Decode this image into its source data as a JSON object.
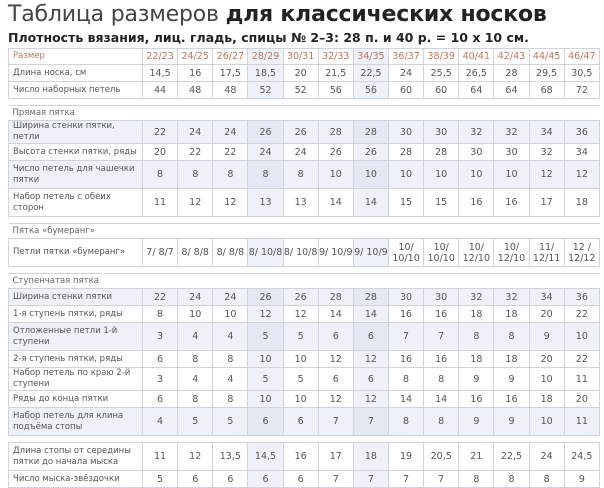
{
  "title": {
    "light": "Таблица размеров ",
    "bold": "для классических носков"
  },
  "subtitle": "Плотность вязания, лиц. гладь, спицы № 2–3: 28 п. и 40 р. = 10 х 10 см.",
  "header": {
    "label": "Размер",
    "sizes": [
      "22/23",
      "24/25",
      "26/27",
      "28/29",
      "30/31",
      "32/33",
      "34/35",
      "36/37",
      "38/39",
      "40/41",
      "42/43",
      "44/45",
      "46/47"
    ]
  },
  "colors": {
    "header_text": "#c07660",
    "grid": "#cfd4dc",
    "shade": "#eef1f7"
  },
  "rows": [
    {
      "type": "data",
      "label": "Длина носка, см",
      "values": [
        "14,5",
        "16",
        "17,5",
        "18,5",
        "20",
        "21,5",
        "22,5",
        "24",
        "25,5",
        "26,5",
        "28",
        "29,5",
        "30,5"
      ]
    },
    {
      "type": "data",
      "label": "Число наборных петель",
      "values": [
        "44",
        "48",
        "48",
        "52",
        "52",
        "56",
        "56",
        "60",
        "60",
        "64",
        "64",
        "68",
        "72"
      ]
    },
    {
      "type": "gap"
    },
    {
      "type": "section",
      "label": "Прямая пятка"
    },
    {
      "type": "data",
      "shade": true,
      "label": "Ширина стенки пятки, петли",
      "values": [
        "22",
        "24",
        "24",
        "26",
        "26",
        "28",
        "28",
        "30",
        "30",
        "32",
        "32",
        "34",
        "36"
      ]
    },
    {
      "type": "data",
      "label": "Высота стенки пятки, ряды",
      "values": [
        "20",
        "22",
        "22",
        "24",
        "24",
        "26",
        "26",
        "28",
        "28",
        "30",
        "30",
        "32",
        "34"
      ]
    },
    {
      "type": "data",
      "shade": true,
      "tall": true,
      "label": "Число петель для чашечки пятки",
      "values": [
        "8",
        "8",
        "8",
        "8",
        "8",
        "10",
        "10",
        "10",
        "10",
        "10",
        "10",
        "12",
        "12"
      ]
    },
    {
      "type": "data",
      "tall": true,
      "label": "Набор петель с обеих сторон",
      "values": [
        "11",
        "12",
        "12",
        "13",
        "13",
        "14",
        "14",
        "15",
        "15",
        "16",
        "16",
        "17",
        "18"
      ]
    },
    {
      "type": "gap"
    },
    {
      "type": "section",
      "label": "Пятка «бумеранг»"
    },
    {
      "type": "data",
      "tall": true,
      "label": "Петли пятки «бумеранг»",
      "values": [
        "7/ 8/7",
        "8/ 8/8",
        "8/ 8/8",
        "8/ 10/8",
        "8/ 10/8",
        "9/ 10/9",
        "9/ 10/9",
        "10/ 10/10",
        "10/ 10/10",
        "10/ 12/10",
        "10/ 12/10",
        "11/ 12/11",
        "12 / 12/12"
      ]
    },
    {
      "type": "gap"
    },
    {
      "type": "section",
      "label": "Ступенчатая пятка"
    },
    {
      "type": "data",
      "shade": true,
      "label": "Ширина стенки пятки",
      "values": [
        "22",
        "24",
        "24",
        "26",
        "26",
        "28",
        "28",
        "30",
        "30",
        "32",
        "32",
        "34",
        "36"
      ]
    },
    {
      "type": "data",
      "label": "1-я ступень пятки, ряды",
      "values": [
        "8",
        "10",
        "10",
        "12",
        "12",
        "14",
        "14",
        "16",
        "16",
        "18",
        "18",
        "20",
        "22"
      ]
    },
    {
      "type": "data",
      "shade": true,
      "tall": true,
      "label": "Отложенные петли 1-й ступени",
      "values": [
        "3",
        "4",
        "4",
        "5",
        "5",
        "6",
        "6",
        "7",
        "7",
        "8",
        "8",
        "9",
        "10"
      ]
    },
    {
      "type": "data",
      "label": "2-я ступень пятки, ряды",
      "values": [
        "6",
        "8",
        "8",
        "10",
        "10",
        "12",
        "12",
        "16",
        "16",
        "18",
        "18",
        "20",
        "22"
      ]
    },
    {
      "type": "data",
      "label": "Набор петель по краю 2-й ступени",
      "values": [
        "3",
        "4",
        "4",
        "5",
        "5",
        "6",
        "6",
        "8",
        "8",
        "9",
        "9",
        "10",
        "11"
      ]
    },
    {
      "type": "data",
      "label": "Ряды до конца пятки",
      "values": [
        "6",
        "8",
        "8",
        "10",
        "10",
        "12",
        "12",
        "14",
        "14",
        "16",
        "16",
        "18",
        "20"
      ]
    },
    {
      "type": "data",
      "shade": true,
      "tall": true,
      "label": "Набор петель для клина подъёма стопы",
      "values": [
        "4",
        "5",
        "5",
        "6",
        "6",
        "7",
        "7",
        "8",
        "8",
        "9",
        "9",
        "10",
        "11"
      ]
    },
    {
      "type": "gap"
    },
    {
      "type": "data",
      "tall": true,
      "label": "Длина стопы от середины пятки до начала мыска",
      "values": [
        "11",
        "12",
        "13,5",
        "14,5",
        "16",
        "17",
        "18",
        "19",
        "20,5",
        "21",
        "22,5",
        "24",
        "24,5"
      ]
    },
    {
      "type": "data",
      "label": "Число мыска-звёздочки",
      "values": [
        "5",
        "6",
        "6",
        "6",
        "6",
        "7",
        "7",
        "7",
        "7",
        "8",
        "8",
        "8",
        "9"
      ]
    }
  ]
}
